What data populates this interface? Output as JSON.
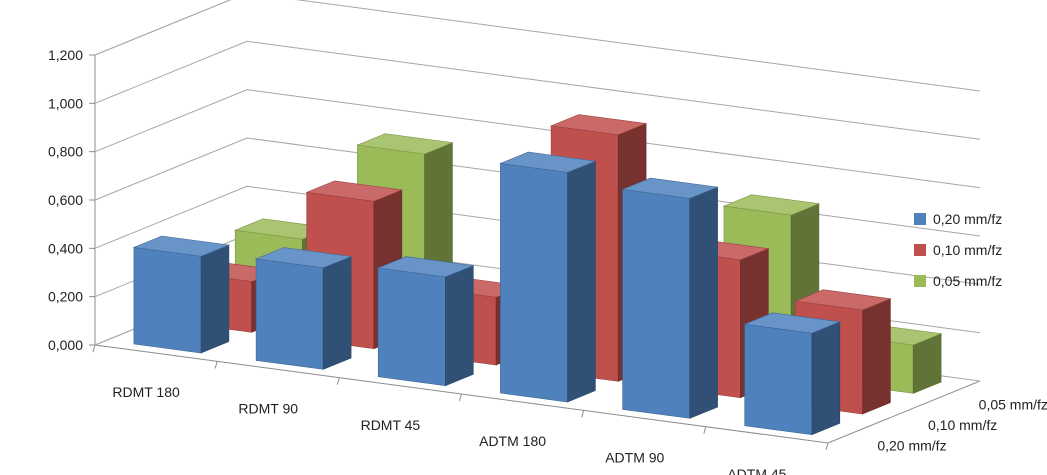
{
  "chart_data": {
    "type": "bar",
    "categories": [
      "RDMT 180",
      "RDMT 90",
      "RDMT 45",
      "ADTM 180",
      "ADTM 90",
      "ADTM 45"
    ],
    "series": [
      {
        "name": "0,20 mm/fz",
        "values": [
          0.4,
          0.42,
          0.45,
          0.95,
          0.91,
          0.42
        ],
        "color": "#4f81bd"
      },
      {
        "name": "0,10  mm/fz",
        "values": [
          0.21,
          0.61,
          0.28,
          1.02,
          0.57,
          0.43
        ],
        "color": "#c0504d"
      },
      {
        "name": "0,05 mm/fz",
        "values": [
          0.3,
          0.72,
          0.12,
          0.32,
          0.67,
          0.2
        ],
        "color": "#9bbb59"
      }
    ],
    "depth_labels": [
      "0,05 mm/fz",
      "0,10  mm/fz",
      "0,20 mm/fz"
    ],
    "yticks": [
      "0,000",
      "0,200",
      "0,400",
      "0,600",
      "0,800",
      "1,000",
      "1,200"
    ],
    "ylim": [
      0,
      1.2
    ],
    "grid": true,
    "legend_position": "right",
    "projection": "3d"
  }
}
